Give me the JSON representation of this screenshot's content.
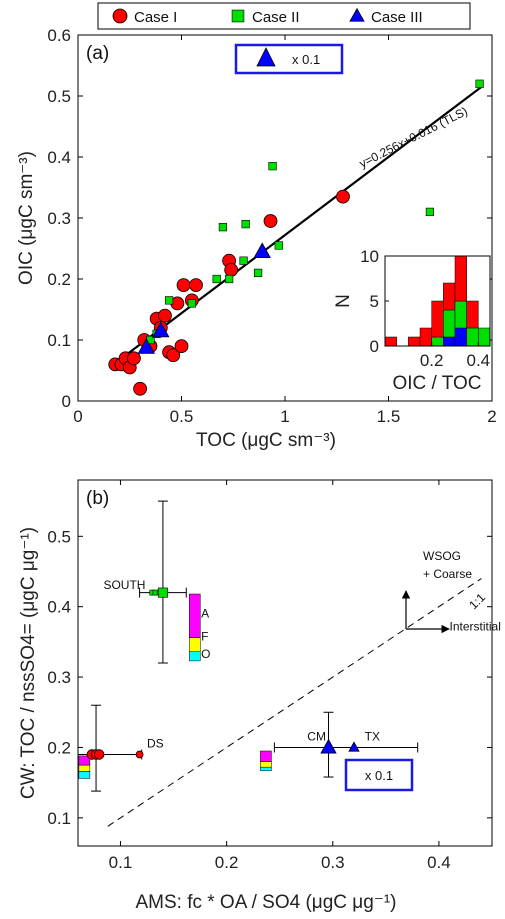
{
  "legend": {
    "items": [
      {
        "label": "Case I",
        "color": "#ff0000",
        "marker": "circle"
      },
      {
        "label": "Case II",
        "color": "#00dd00",
        "marker": "square"
      },
      {
        "label": "Case III",
        "color": "#0000ff",
        "marker": "triangle"
      }
    ]
  },
  "chart_data": [
    {
      "type": "scatter",
      "panel_label": "(a)",
      "xlabel": "TOC (μgC sm⁻³)",
      "ylabel": "OIC (μgC sm⁻³)",
      "xlim": [
        0,
        2
      ],
      "ylim": [
        0,
        0.6
      ],
      "xticks": [
        0,
        0.5,
        1,
        1.5,
        2
      ],
      "xtick_labels": [
        "0",
        "0.5",
        "1",
        "1.5",
        "2"
      ],
      "yticks": [
        0,
        0.1,
        0.2,
        0.3,
        0.4,
        0.5,
        0.6
      ],
      "ytick_labels": [
        "0",
        "0.1",
        "0.2",
        "0.3",
        "0.4",
        "0.5",
        "0.6"
      ],
      "scale_note": "x 0.1",
      "fit": {
        "label": "y=0.256x+0.016 (TLS)",
        "slope": 0.256,
        "intercept": 0.016,
        "x_range": [
          0.18,
          1.95
        ]
      },
      "series": [
        {
          "name": "Case I",
          "color": "#ff0000",
          "marker": "circle",
          "points": [
            [
              0.18,
              0.06
            ],
            [
              0.21,
              0.06
            ],
            [
              0.23,
              0.07
            ],
            [
              0.25,
              0.055
            ],
            [
              0.27,
              0.07
            ],
            [
              0.3,
              0.02
            ],
            [
              0.32,
              0.1
            ],
            [
              0.35,
              0.09
            ],
            [
              0.38,
              0.135
            ],
            [
              0.4,
              0.12
            ],
            [
              0.42,
              0.14
            ],
            [
              0.44,
              0.08
            ],
            [
              0.46,
              0.075
            ],
            [
              0.48,
              0.16
            ],
            [
              0.5,
              0.09
            ],
            [
              0.51,
              0.19
            ],
            [
              0.55,
              0.165
            ],
            [
              0.57,
              0.19
            ],
            [
              0.73,
              0.23
            ],
            [
              0.74,
              0.215
            ],
            [
              0.93,
              0.295
            ],
            [
              1.28,
              0.335
            ]
          ]
        },
        {
          "name": "Case II",
          "color": "#00dd00",
          "marker": "square",
          "points": [
            [
              0.35,
              0.1
            ],
            [
              0.38,
              0.11
            ],
            [
              0.44,
              0.165
            ],
            [
              0.55,
              0.16
            ],
            [
              0.67,
              0.2
            ],
            [
              0.7,
              0.285
            ],
            [
              0.73,
              0.2
            ],
            [
              0.8,
              0.23
            ],
            [
              0.81,
              0.29
            ],
            [
              0.87,
              0.21
            ],
            [
              0.94,
              0.385
            ],
            [
              0.97,
              0.255
            ],
            [
              1.7,
              0.31
            ],
            [
              1.94,
              0.52
            ]
          ]
        },
        {
          "name": "Case III",
          "color": "#0000ff",
          "marker": "triangle",
          "points": [
            [
              0.33,
              0.088
            ],
            [
              0.4,
              0.115
            ],
            [
              0.89,
              0.245
            ]
          ]
        }
      ],
      "inset": {
        "type": "histogram",
        "stacked": true,
        "xlabel": "OIC / TOC",
        "ylabel": "N",
        "xlim": [
          0,
          0.45
        ],
        "ylim": [
          0,
          10
        ],
        "xticks": [
          0.2,
          0.4
        ],
        "xtick_labels": [
          "0.2",
          "0.4"
        ],
        "yticks": [
          0,
          5,
          10
        ],
        "ytick_labels": [
          "0",
          "5",
          "10"
        ],
        "bins": [
          [
            0.0,
            0.05
          ],
          [
            0.05,
            0.1
          ],
          [
            0.1,
            0.15
          ],
          [
            0.15,
            0.2
          ],
          [
            0.2,
            0.25
          ],
          [
            0.25,
            0.3
          ],
          [
            0.3,
            0.35
          ],
          [
            0.35,
            0.4
          ],
          [
            0.4,
            0.45
          ]
        ],
        "series": [
          {
            "name": "Case III",
            "color": "#0000ff",
            "counts": [
              0,
              0,
              0,
              0,
              0,
              1,
              2,
              0,
              0
            ]
          },
          {
            "name": "Case II",
            "color": "#00dd00",
            "counts": [
              0,
              0,
              0,
              0,
              1,
              3,
              3,
              2,
              2
            ]
          },
          {
            "name": "Case I",
            "color": "#ff0000",
            "counts": [
              1,
              0,
              1,
              2,
              4,
              3,
              5,
              3,
              0
            ]
          }
        ]
      }
    },
    {
      "type": "scatter",
      "panel_label": "(b)",
      "xlabel": "AMS: fc * OA / SO4 (μgC μg⁻¹)",
      "ylabel": "CW: TOC / nssSO4= (μgC μg⁻¹)",
      "xlim": [
        0.06,
        0.45
      ],
      "ylim": [
        0.06,
        0.58
      ],
      "xticks": [
        0.1,
        0.2,
        0.3,
        0.4
      ],
      "xtick_labels": [
        "0.1",
        "0.2",
        "0.3",
        "0.4"
      ],
      "yticks": [
        0.1,
        0.2,
        0.3,
        0.4,
        0.5
      ],
      "ytick_labels": [
        "0.1",
        "0.2",
        "0.3",
        "0.4",
        "0.5"
      ],
      "one_to_one_label": "1:1",
      "scale_note": "x 0.1",
      "annotations": [
        {
          "text": "SOUTH",
          "x": 0.084,
          "y": 0.425
        },
        {
          "text": "DS",
          "x": 0.125,
          "y": 0.2
        },
        {
          "text": "CM",
          "x": 0.276,
          "y": 0.21
        },
        {
          "text": "TX",
          "x": 0.33,
          "y": 0.21
        },
        {
          "text": "A",
          "x": 0.176,
          "y": 0.385
        },
        {
          "text": "F",
          "x": 0.176,
          "y": 0.352
        },
        {
          "text": "O",
          "x": 0.176,
          "y": 0.327
        },
        {
          "text": "WSOG",
          "x": 0.385,
          "y": 0.466
        },
        {
          "text": "+ Coarse",
          "x": 0.385,
          "y": 0.441
        },
        {
          "text": "Interstitial",
          "x": 0.41,
          "y": 0.366
        }
      ],
      "series": [
        {
          "name": "SOUTH",
          "color": "#00dd00",
          "marker": "square",
          "points": [
            [
              0.13,
              0.42
            ],
            [
              0.133,
              0.42
            ],
            [
              0.137,
              0.42
            ],
            [
              0.14,
              0.42
            ]
          ],
          "error": {
            "x": 0.14,
            "y": 0.42,
            "xerr": [
              0.0,
              0.0
            ],
            "yerr": [
              0.1,
              0.13
            ],
            "xrange": [
              0.118,
              0.162
            ]
          }
        },
        {
          "name": "DS",
          "color": "#ff0000",
          "marker": "circle",
          "points": [
            [
              0.073,
              0.19
            ],
            [
              0.077,
              0.19
            ],
            [
              0.08,
              0.19
            ],
            [
              0.118,
              0.19
            ]
          ],
          "error": {
            "x": 0.077,
            "y": 0.19,
            "xrange": [
              0.06,
              0.12
            ],
            "yrange": [
              0.138,
              0.26
            ]
          }
        },
        {
          "name": "CM",
          "color": "#0000ff",
          "marker": "triangle",
          "points": [
            [
              0.296,
              0.2
            ]
          ],
          "error": {
            "x": 0.296,
            "y": 0.2,
            "xrange": [
              0.245,
              0.38
            ],
            "yrange": [
              0.158,
              0.25
            ]
          }
        },
        {
          "name": "TX",
          "color": "#0000ff",
          "marker": "triangle",
          "points": [
            [
              0.32,
              0.2
            ]
          ]
        }
      ],
      "stacked_bars": [
        {
          "x": 0.17,
          "segments": [
            {
              "color": "#00ffff",
              "from": 0.323,
              "to": 0.336
            },
            {
              "color": "#ffff00",
              "from": 0.336,
              "to": 0.356
            },
            {
              "color": "#ff00ff",
              "from": 0.356,
              "to": 0.418
            }
          ]
        },
        {
          "x": 0.066,
          "segments": [
            {
              "color": "#00ffff",
              "from": 0.156,
              "to": 0.166
            },
            {
              "color": "#ffff00",
              "from": 0.166,
              "to": 0.175
            },
            {
              "color": "#ff00ff",
              "from": 0.175,
              "to": 0.188
            }
          ]
        },
        {
          "x": 0.237,
          "segments": [
            {
              "color": "#00ffff",
              "from": 0.167,
              "to": 0.172
            },
            {
              "color": "#ffff00",
              "from": 0.172,
              "to": 0.18
            },
            {
              "color": "#ff00ff",
              "from": 0.18,
              "to": 0.195
            }
          ]
        }
      ]
    }
  ]
}
